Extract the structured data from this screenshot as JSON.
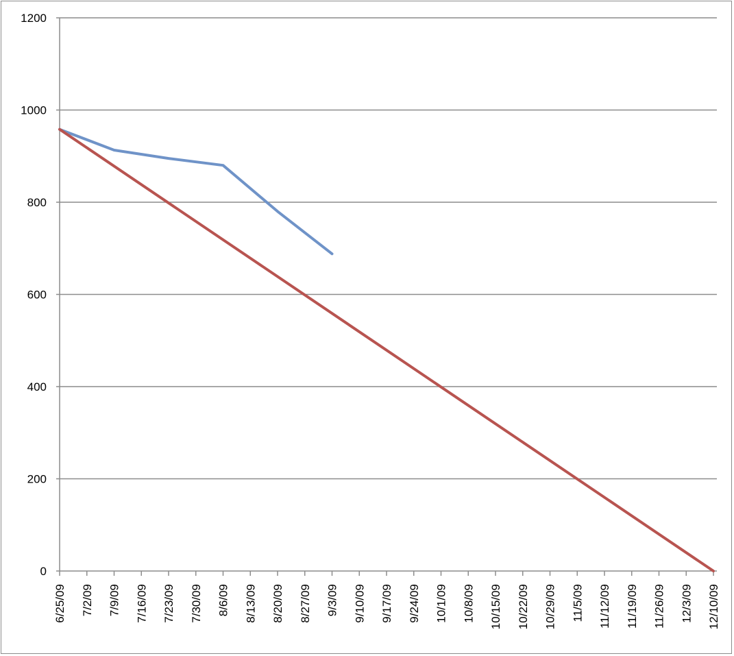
{
  "chart_data": {
    "type": "line",
    "title": "",
    "xlabel": "",
    "ylabel": "",
    "ylim": [
      0,
      1200
    ],
    "y_ticks": [
      0,
      200,
      400,
      600,
      800,
      1000,
      1200
    ],
    "x_ticks": [
      "6/25/09",
      "7/2/09",
      "7/9/09",
      "7/16/09",
      "7/23/09",
      "7/30/09",
      "8/6/09",
      "8/13/09",
      "8/20/09",
      "8/27/09",
      "9/3/09",
      "9/10/09",
      "9/17/09",
      "9/24/09",
      "10/1/09",
      "10/8/09",
      "10/15/09",
      "10/22/09",
      "10/29/09",
      "11/5/09",
      "11/12/09",
      "11/19/09",
      "11/26/09",
      "12/3/09",
      "12/10/09"
    ],
    "grid": "horizontal",
    "legend": "none",
    "series": [
      {
        "color": "#6f93c8",
        "x": [
          "6/25/09",
          "7/9/09",
          "7/23/09",
          "8/6/09",
          "8/20/09",
          "9/3/09"
        ],
        "y": [
          958,
          913,
          895,
          880,
          780,
          688
        ]
      },
      {
        "color": "#b85450",
        "x": [
          "6/25/09",
          "12/10/09"
        ],
        "y": [
          958,
          0
        ]
      }
    ]
  }
}
